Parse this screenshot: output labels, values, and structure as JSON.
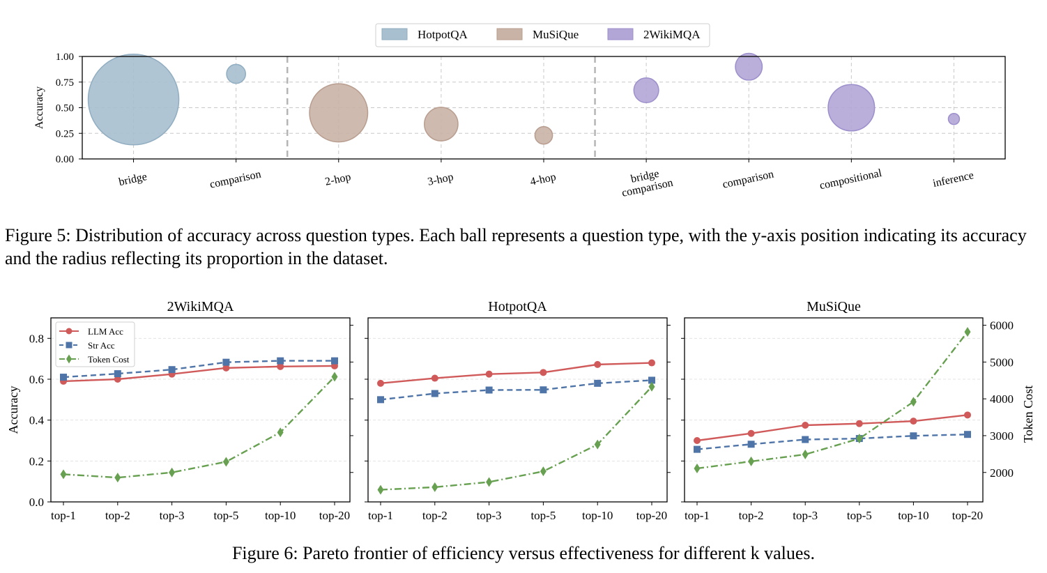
{
  "chart_data": [
    {
      "type": "bubble",
      "ylabel": "Accuracy",
      "ylim": [
        0,
        1
      ],
      "yticks": [
        "0.00",
        "0.25",
        "0.50",
        "0.75",
        "1.00"
      ],
      "grid": true,
      "legend_position": "top-center",
      "legend": [
        "HotpotQA",
        "MuSiQue",
        "2WikiMQA"
      ],
      "colors": [
        "#a7bfcf",
        "#c9b2a6",
        "#b2a6d6"
      ],
      "edge_colors": [
        "#90adc1",
        "#b89d8f",
        "#9d8fcb"
      ],
      "points": [
        {
          "label": "bridge",
          "dataset": 0,
          "accuracy": 0.58,
          "proportion": 0.8
        },
        {
          "label": "comparison",
          "dataset": 0,
          "accuracy": 0.83,
          "proportion": 0.035
        },
        {
          "label": "2-hop",
          "dataset": 1,
          "accuracy": 0.45,
          "proportion": 0.33
        },
        {
          "label": "3-hop",
          "dataset": 1,
          "accuracy": 0.34,
          "proportion": 0.11
        },
        {
          "label": "4-hop",
          "dataset": 1,
          "accuracy": 0.23,
          "proportion": 0.03
        },
        {
          "label": "bridge\ncomparison",
          "dataset": 2,
          "accuracy": 0.67,
          "proportion": 0.06
        },
        {
          "label": "comparison",
          "dataset": 2,
          "accuracy": 0.9,
          "proportion": 0.07
        },
        {
          "label": "compositional",
          "dataset": 2,
          "accuracy": 0.5,
          "proportion": 0.21
        },
        {
          "label": "inference",
          "dataset": 2,
          "accuracy": 0.39,
          "proportion": 0.012
        }
      ]
    },
    {
      "type": "line",
      "categories": [
        "top-1",
        "top-2",
        "top-3",
        "top-5",
        "top-10",
        "top-20"
      ],
      "ylabel_left": "Accuracy",
      "ylabel_right": "Token Cost",
      "ylim_left": [
        0,
        0.9
      ],
      "yticks_left": [
        "0.0",
        "0.2",
        "0.4",
        "0.6",
        "0.8"
      ],
      "ylim_right": [
        1200,
        6200
      ],
      "yticks_right": [
        "2000",
        "3000",
        "4000",
        "5000",
        "6000"
      ],
      "legend": [
        "LLM Acc",
        "Str Acc",
        "Token Cost"
      ],
      "legend_position": "top-left",
      "colors": {
        "llm": "#d05a5a",
        "str": "#4e74a8",
        "token": "#67a050"
      },
      "panels": [
        {
          "title": "2WikiMQA",
          "llm_acc": [
            0.59,
            0.6,
            0.625,
            0.655,
            0.662,
            0.665
          ],
          "str_acc": [
            0.61,
            0.627,
            0.647,
            0.683,
            0.69,
            0.69
          ],
          "token_cost": [
            1950,
            1860,
            2000,
            2290,
            3090,
            4600
          ]
        },
        {
          "title": "HotpotQA",
          "llm_acc": [
            0.58,
            0.605,
            0.625,
            0.633,
            0.672,
            0.68
          ],
          "str_acc": [
            0.5,
            0.53,
            0.547,
            0.548,
            0.58,
            0.595
          ],
          "token_cost": [
            1530,
            1600,
            1740,
            2030,
            2760,
            4330
          ]
        },
        {
          "title": "MuSiQue",
          "llm_acc": [
            0.3,
            0.335,
            0.375,
            0.383,
            0.395,
            0.425
          ],
          "str_acc": [
            0.257,
            0.282,
            0.305,
            0.31,
            0.323,
            0.33
          ],
          "token_cost": [
            2110,
            2300,
            2490,
            2920,
            3920,
            5820
          ]
        }
      ]
    }
  ],
  "captions": {
    "fig5": "Figure 5: Distribution of accuracy across question types. Each ball represents a question type, with the y-axis position indicating its accuracy and the radius reflecting its proportion in the dataset.",
    "fig6": "Figure 6: Pareto frontier of efficiency versus effectiveness for different k values."
  }
}
